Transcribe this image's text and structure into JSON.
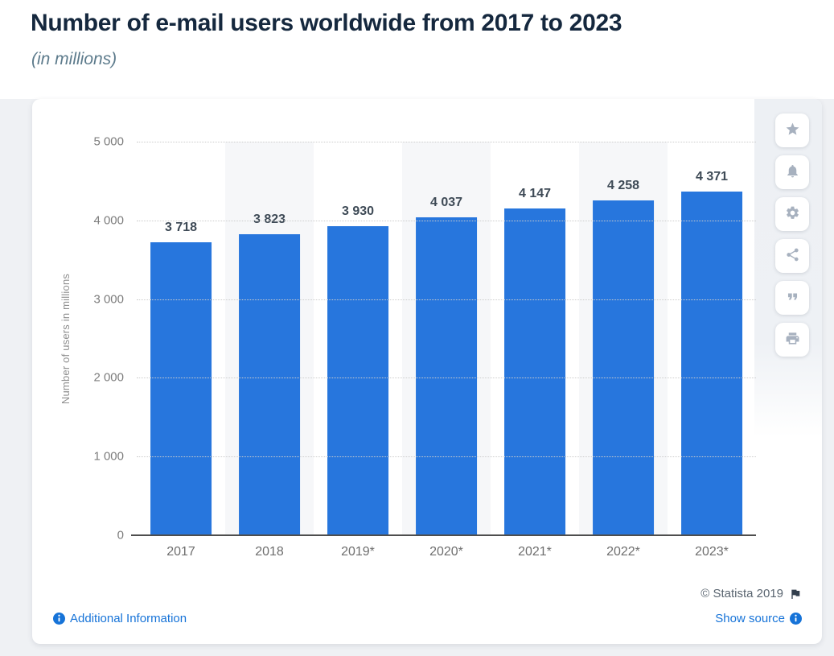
{
  "page": {
    "title": "Number of e-mail users worldwide from 2017 to 2023",
    "subtitle": "(in millions)"
  },
  "chart_data": {
    "type": "bar",
    "title": "Number of e-mail users worldwide from 2017 to 2023",
    "subtitle": "(in millions)",
    "categories": [
      "2017",
      "2018",
      "2019*",
      "2020*",
      "2021*",
      "2022*",
      "2023*"
    ],
    "values": [
      3718,
      3823,
      3930,
      4037,
      4147,
      4258,
      4371
    ],
    "value_labels": [
      "3 718",
      "3 823",
      "3 930",
      "4 037",
      "4 147",
      "4 258",
      "4 371"
    ],
    "xlabel": "",
    "ylabel": "Number of users in millions",
    "ylim": [
      0,
      5000
    ],
    "yticks": [
      0,
      1000,
      2000,
      3000,
      4000,
      5000
    ],
    "ytick_labels": [
      "0",
      "1 000",
      "2 000",
      "3 000",
      "4 000",
      "5 000"
    ],
    "grid": "horizontal-dotted",
    "legend": "none",
    "bar_color": "#2776dd",
    "banded_columns": [
      1,
      3,
      5
    ],
    "band_color": "#f6f7f9"
  },
  "toolbar": {
    "buttons": [
      {
        "name": "favorite",
        "icon": "star-icon"
      },
      {
        "name": "alerts",
        "icon": "bell-icon"
      },
      {
        "name": "settings",
        "icon": "gear-icon"
      },
      {
        "name": "share",
        "icon": "share-icon"
      },
      {
        "name": "cite",
        "icon": "quote-icon"
      },
      {
        "name": "print",
        "icon": "printer-icon"
      }
    ]
  },
  "footer": {
    "copyright": "© Statista 2019",
    "additional_info_label": "Additional Information",
    "show_source_label": "Show source"
  },
  "colors": {
    "accent_blue": "#2776dd",
    "link_blue": "#1673d8",
    "title_text": "#15283e",
    "subtitle_text": "#5d7b8c",
    "page_background": "#eff1f4",
    "card_background": "#ffffff"
  }
}
